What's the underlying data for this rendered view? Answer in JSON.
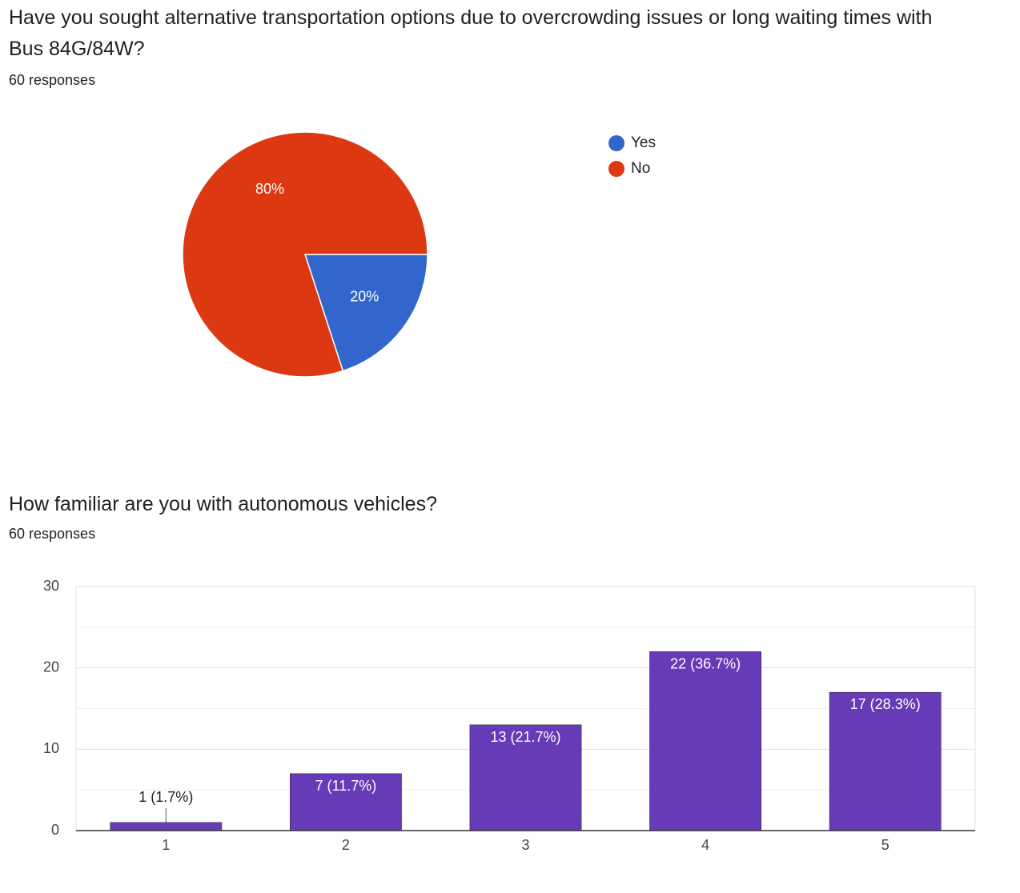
{
  "questions": [
    {
      "title": "Have you sought alternative transportation options due to overcrowding issues or long waiting times with Bus 84G/84W?",
      "responses": "60 responses"
    },
    {
      "title": "How familiar are you with autonomous vehicles?",
      "responses": "60 responses"
    }
  ],
  "chart_data": [
    {
      "type": "pie",
      "slices": [
        {
          "label": "Yes",
          "value": 20,
          "display": "20%",
          "color": "#3366cc"
        },
        {
          "label": "No",
          "value": 80,
          "display": "80%",
          "color": "#dc3912"
        }
      ],
      "legend_position": "right"
    },
    {
      "type": "bar",
      "categories": [
        "1",
        "2",
        "3",
        "4",
        "5"
      ],
      "values": [
        1,
        7,
        13,
        22,
        17
      ],
      "data_labels": [
        "1 (1.7%)",
        "7 (11.7%)",
        "13 (21.7%)",
        "22 (36.7%)",
        "17 (28.3%)"
      ],
      "ylim": [
        0,
        30
      ],
      "yticks": [
        "0",
        "10",
        "20",
        "30"
      ],
      "grid": true,
      "bar_color": "#673ab7"
    }
  ]
}
